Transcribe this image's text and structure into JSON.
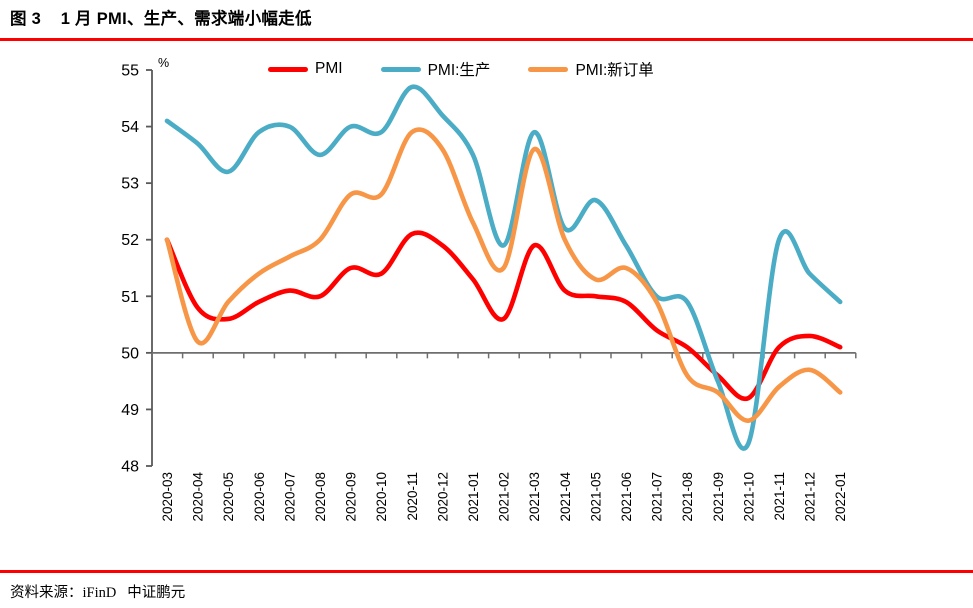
{
  "figure": {
    "title": "图 3    1 月 PMI、生产、需求端小幅走低",
    "source": "资料来源：iFinD   中证鹏元"
  },
  "chart_data": {
    "type": "line",
    "smoothed": true,
    "unit_label": "%",
    "ylim": [
      48,
      55
    ],
    "ytick_step": 1,
    "baseline": 50,
    "grid": false,
    "legend_position": "top",
    "accent_rule_color": "#FF0000",
    "axis_color": "#595959",
    "baseline_color": "#6e6e6e",
    "categories": [
      "2020-03",
      "2020-04",
      "2020-05",
      "2020-06",
      "2020-07",
      "2020-08",
      "2020-09",
      "2020-10",
      "2020-11",
      "2020-12",
      "2021-01",
      "2021-02",
      "2021-03",
      "2021-04",
      "2021-05",
      "2021-06",
      "2021-07",
      "2021-08",
      "2021-09",
      "2021-10",
      "2021-11",
      "2021-12",
      "2022-01"
    ],
    "series": [
      {
        "name": "PMI",
        "color": "#FF0000",
        "values": [
          52.0,
          50.8,
          50.6,
          50.9,
          51.1,
          51.0,
          51.5,
          51.4,
          52.1,
          51.9,
          51.3,
          50.6,
          51.9,
          51.1,
          51.0,
          50.9,
          50.4,
          50.1,
          49.6,
          49.2,
          50.1,
          50.3,
          50.1
        ]
      },
      {
        "name": "PMI:生产",
        "color": "#4BACC6",
        "values": [
          54.1,
          53.7,
          53.2,
          53.9,
          54.0,
          53.5,
          54.0,
          53.9,
          54.7,
          54.2,
          53.5,
          51.9,
          53.9,
          52.2,
          52.7,
          51.9,
          51.0,
          50.9,
          49.5,
          48.4,
          52.0,
          51.4,
          50.9
        ]
      },
      {
        "name": "PMI:新订单",
        "color": "#F79646",
        "values": [
          52.0,
          50.2,
          50.9,
          51.4,
          51.7,
          52.0,
          52.8,
          52.8,
          53.9,
          53.6,
          52.3,
          51.5,
          53.6,
          52.0,
          51.3,
          51.5,
          50.9,
          49.6,
          49.3,
          48.8,
          49.4,
          49.7,
          49.3
        ]
      }
    ]
  }
}
